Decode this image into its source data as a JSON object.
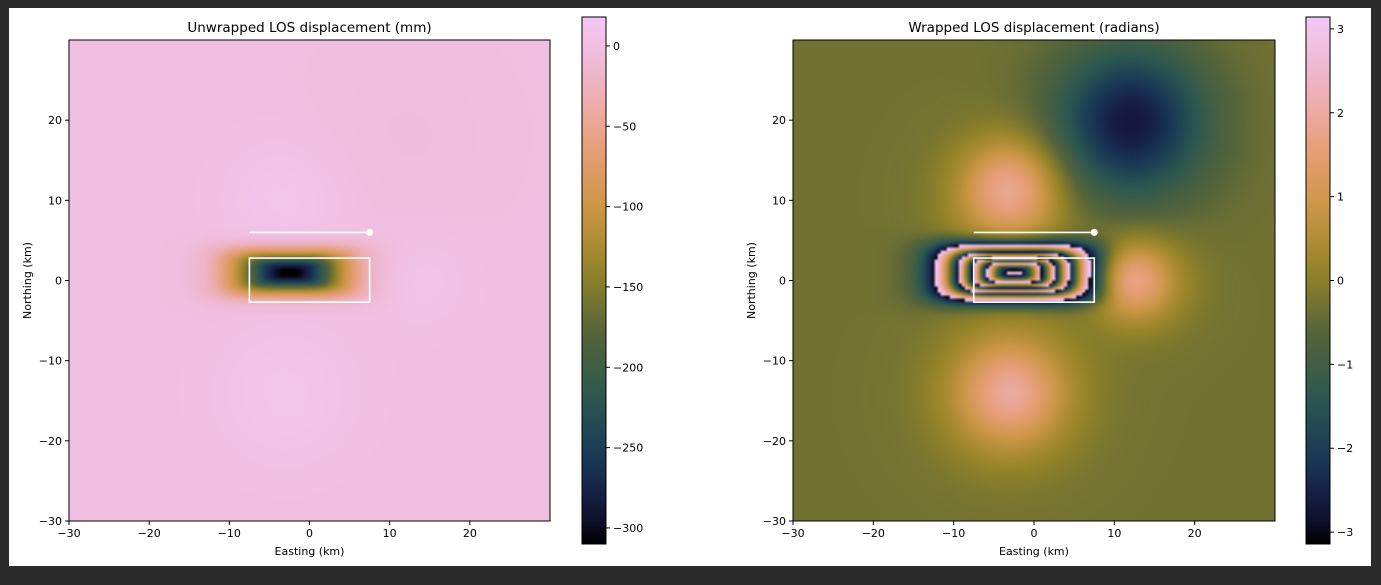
{
  "chart_data": [
    {
      "type": "heatmap",
      "title": "Unwrapped LOS displacement (mm)",
      "xlabel": "Easting (km)",
      "ylabel": "Northing (km)",
      "xlim": [
        -30,
        30
      ],
      "ylim": [
        -30,
        30
      ],
      "xticks": [
        -30,
        -20,
        -10,
        0,
        10,
        20
      ],
      "yticks": [
        -30,
        -20,
        -10,
        0,
        10,
        20
      ],
      "colorbar": {
        "range": [
          -310,
          18
        ],
        "ticks": [
          0,
          -50,
          -100,
          -150,
          -200,
          -250,
          -300
        ],
        "colormap": "cubehelix-pink"
      },
      "overlay": {
        "fault_trace": {
          "x": [
            -7.5,
            7.5
          ],
          "y": [
            6,
            6
          ],
          "endpoint_marker": [
            7.5,
            6
          ]
        },
        "fault_rectangle": {
          "x": [
            -7.5,
            7.5
          ],
          "y": [
            -2.7,
            2.8
          ]
        }
      },
      "field": {
        "min_value": -310,
        "min_location": [
          -3,
          1
        ],
        "extent_x_km": 10,
        "extent_y_km": 4
      }
    },
    {
      "type": "heatmap",
      "title": "Wrapped LOS displacement (radians)",
      "xlabel": "Easting (km)",
      "ylabel": "Northing (km)",
      "xlim": [
        -30,
        30
      ],
      "ylim": [
        -30,
        30
      ],
      "xticks": [
        -30,
        -20,
        -10,
        0,
        10,
        20
      ],
      "yticks": [
        -30,
        -20,
        -10,
        0,
        10,
        20
      ],
      "colorbar": {
        "range": [
          -3.14159,
          3.14159
        ],
        "ticks": [
          3,
          2,
          1,
          0,
          -1,
          -2,
          -3
        ],
        "colormap": "cubehelix"
      },
      "overlay": {
        "fault_trace": {
          "x": [
            -7.5,
            7.5
          ],
          "y": [
            6,
            6
          ],
          "endpoint_marker": [
            7.5,
            6
          ]
        },
        "fault_rectangle": {
          "x": [
            -7.5,
            7.5
          ],
          "y": [
            -2.7,
            2.8
          ]
        }
      }
    }
  ]
}
